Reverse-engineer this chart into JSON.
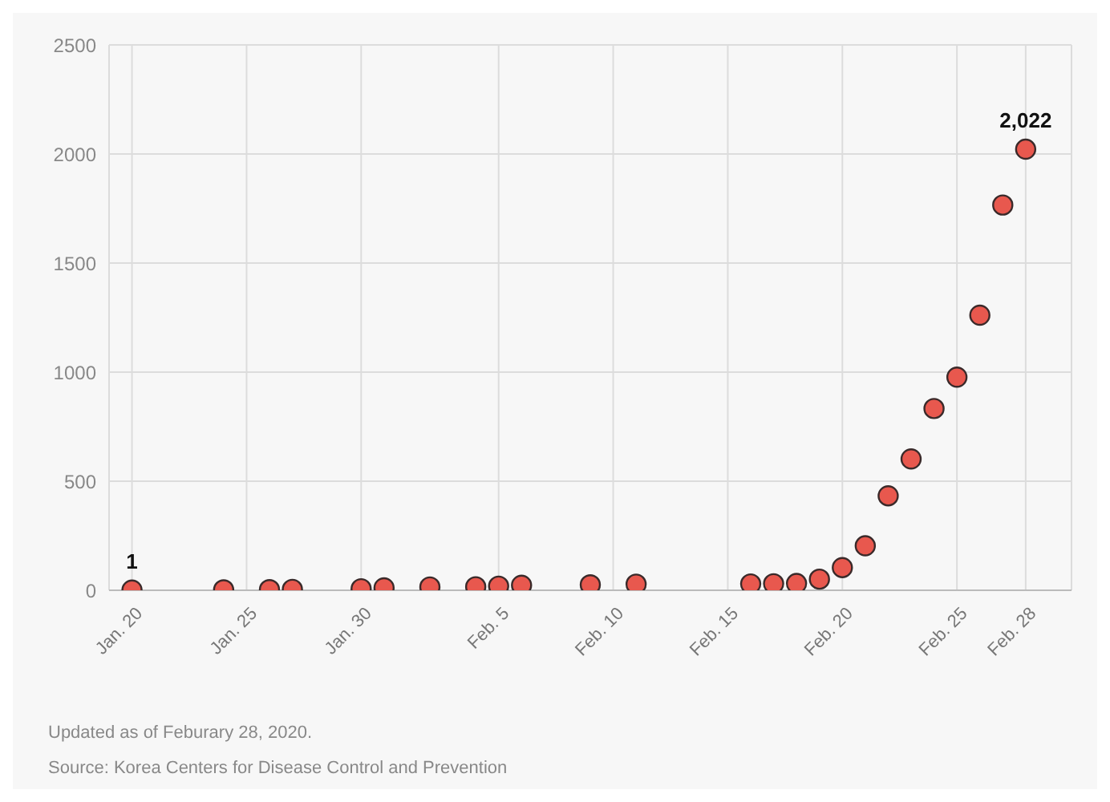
{
  "chart_data": {
    "type": "scatter",
    "x": [
      "2020-01-20",
      "2020-01-24",
      "2020-01-26",
      "2020-01-27",
      "2020-01-30",
      "2020-01-31",
      "2020-02-02",
      "2020-02-04",
      "2020-02-05",
      "2020-02-06",
      "2020-02-09",
      "2020-02-11",
      "2020-02-16",
      "2020-02-17",
      "2020-02-18",
      "2020-02-19",
      "2020-02-20",
      "2020-02-21",
      "2020-02-22",
      "2020-02-23",
      "2020-02-24",
      "2020-02-25",
      "2020-02-26",
      "2020-02-27",
      "2020-02-28"
    ],
    "series": [
      {
        "color": "#e8584e",
        "values": [
          1,
          2,
          3,
          4,
          7,
          11,
          15,
          16,
          19,
          23,
          25,
          28,
          29,
          30,
          31,
          51,
          104,
          204,
          433,
          602,
          833,
          977,
          1261,
          1766,
          2022
        ],
        "value_labels": [
          "1",
          null,
          null,
          null,
          null,
          null,
          null,
          null,
          null,
          null,
          null,
          null,
          null,
          null,
          null,
          null,
          null,
          null,
          null,
          null,
          null,
          null,
          null,
          null,
          "2,022"
        ]
      }
    ],
    "marker": "circle",
    "xlim": [
      "2020-01-19",
      "2020-03-01"
    ],
    "xticks": [
      {
        "value": "2020-01-20",
        "label": "Jan. 20"
      },
      {
        "value": "2020-01-25",
        "label": "Jan. 25"
      },
      {
        "value": "2020-01-30",
        "label": "Jan. 30"
      },
      {
        "value": "2020-02-05",
        "label": "Feb. 5"
      },
      {
        "value": "2020-02-10",
        "label": "Feb. 10"
      },
      {
        "value": "2020-02-15",
        "label": "Feb. 15"
      },
      {
        "value": "2020-02-20",
        "label": "Feb. 20"
      },
      {
        "value": "2020-02-25",
        "label": "Feb. 25"
      },
      {
        "value": "2020-02-28",
        "label": "Feb. 28"
      }
    ],
    "ylim": [
      0,
      2500
    ],
    "yticks": [
      0,
      500,
      1000,
      1500,
      2000,
      2500
    ],
    "grid": true,
    "annotations": [
      "Updated as of Feburary 28, 2020.",
      "Source: Korea Centers for Disease Control and Prevention"
    ]
  }
}
